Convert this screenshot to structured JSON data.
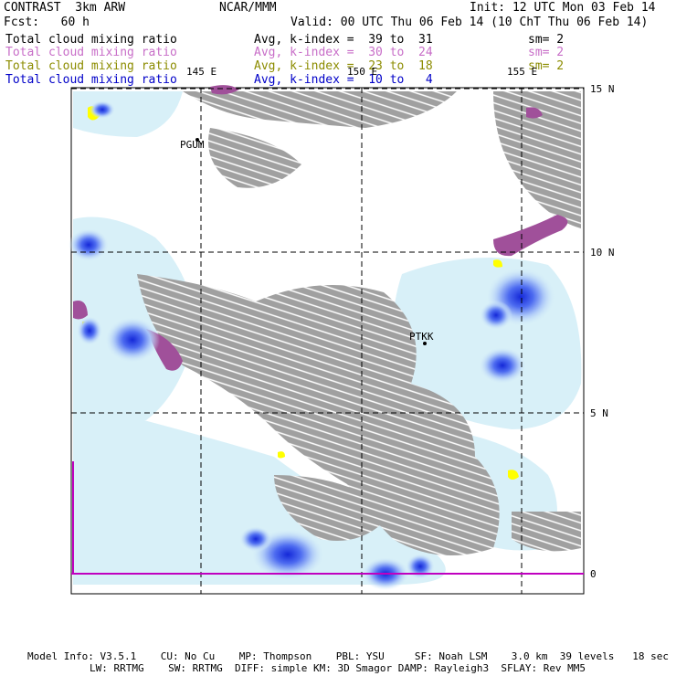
{
  "header": {
    "model": "CONTRAST  3km ARW",
    "org": "NCAR/MMM",
    "init": "Init: 12 UTC Mon 03 Feb 14",
    "fcst": "Fcst:   60 h",
    "valid": "Valid: 00 UTC Thu 06 Feb 14 (10 ChT Thu 06 Feb 14)"
  },
  "fields": [
    {
      "name": "Total cloud mixing ratio",
      "avg": "Avg, k-index =  39 to  31",
      "sm": "sm= 2",
      "color": "#000000"
    },
    {
      "name": "Total cloud mixing ratio",
      "avg": "Avg, k-index =  30 to  24",
      "sm": "sm= 2",
      "color": "#c86ec8"
    },
    {
      "name": "Total cloud mixing ratio",
      "avg": "Avg, k-index =  23 to  18",
      "sm": "sm= 2",
      "color": "#8c8c00"
    },
    {
      "name": "Total cloud mixing ratio",
      "avg": "Avg, k-index =  10 to   4",
      "sm": "",
      "color": "#0000c8"
    }
  ],
  "map": {
    "lon_labels": [
      "145 E",
      "150 E",
      "155 E"
    ],
    "lat_labels": [
      "15 N",
      "10 N",
      "5 N",
      "0"
    ],
    "stations": [
      "PGUM",
      "PTKK"
    ],
    "colors": {
      "gray_cloud": "#a0a0a0",
      "purple_cloud": "#a0509a",
      "yellow_cloud": "#ffff00",
      "light_blue": "#d8f0f8",
      "mid_blue": "#8aa8ff",
      "dark_blue": "#1428d8",
      "grid": "#000000",
      "equator": "#c000c0"
    }
  },
  "footer": {
    "line1": "Model Info: V3.5.1    CU: No Cu    MP: Thompson    PBL: YSU     SF: Noah LSM    3.0 km  39 levels   18 sec",
    "line2": "LW: RRTMG    SW: RRTMG  DIFF: simple KM: 3D Smagor DAMP: Rayleigh3  SFLAY: Rev MM5"
  }
}
